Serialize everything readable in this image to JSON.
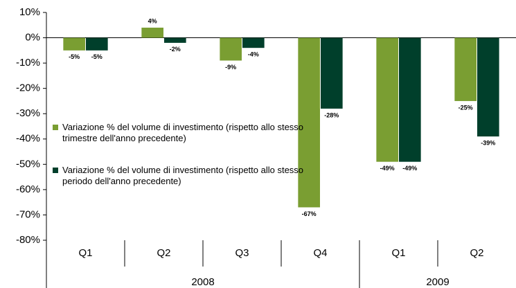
{
  "chart_data": {
    "type": "bar",
    "categories": [
      "Q1",
      "Q2",
      "Q3",
      "Q4",
      "Q1",
      "Q2"
    ],
    "x_groups": [
      "2008",
      "2008",
      "2008",
      "2008",
      "2009",
      "2009"
    ],
    "series": [
      {
        "name": "Variazione % del volume di investimento (rispetto allo stesso trimestre dell'anno precedente)",
        "color": "#7a9e32",
        "values": [
          -5,
          4,
          -9,
          -67,
          -49,
          -25
        ],
        "value_labels": [
          "-5%",
          "4%",
          "-9%",
          "-67%",
          "-49%",
          "-25%"
        ]
      },
      {
        "name": "Variazione % del volume di investimento (rispetto allo stesso periodo dell'anno precedente)",
        "color": "#003f2b",
        "values": [
          -5,
          -2,
          -4,
          -28,
          -49,
          -39
        ],
        "value_labels": [
          "-5%",
          "-2%",
          "-4%",
          "-28%",
          "-49%",
          "-39%"
        ]
      }
    ],
    "ylim": [
      -80,
      10
    ],
    "yticks": [
      {
        "value": 10,
        "label": "10%"
      },
      {
        "value": 0,
        "label": "0%"
      },
      {
        "value": -10,
        "label": "-10%"
      },
      {
        "value": -20,
        "label": "-20%"
      },
      {
        "value": -30,
        "label": "-30%"
      },
      {
        "value": -40,
        "label": "-40%"
      },
      {
        "value": -50,
        "label": "-50%"
      },
      {
        "value": -60,
        "label": "-60%"
      },
      {
        "value": -70,
        "label": "-70%"
      },
      {
        "value": -80,
        "label": "-80%"
      }
    ],
    "legend": "left"
  }
}
